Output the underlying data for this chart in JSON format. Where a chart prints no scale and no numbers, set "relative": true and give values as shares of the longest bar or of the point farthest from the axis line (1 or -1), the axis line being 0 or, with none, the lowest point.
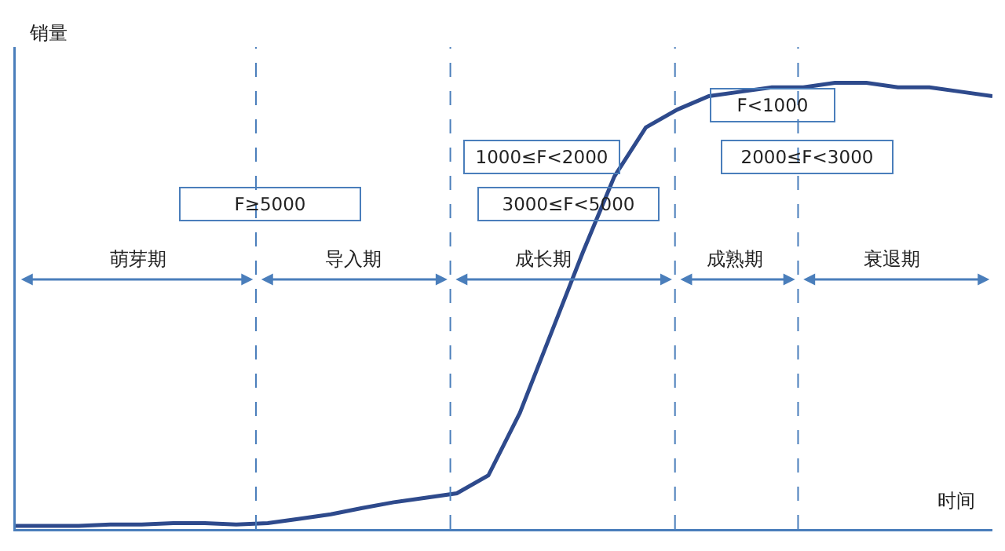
{
  "chart_data": {
    "type": "line",
    "relative": true,
    "xlabel": "时间",
    "ylabel": "销量",
    "color": "#2e4a8c",
    "categories": [
      null,
      null,
      null,
      null,
      null,
      null,
      null,
      null,
      null,
      null,
      null,
      null,
      null,
      null,
      null,
      null,
      null,
      null,
      null,
      null,
      null,
      null,
      null,
      null,
      null,
      null,
      null,
      null,
      null,
      null,
      null,
      null
    ],
    "marker": "none",
    "line_style": "solid",
    "values": [
      0.007,
      0.007,
      0.007,
      0.01,
      0.01,
      0.013,
      0.013,
      0.01,
      0.013,
      0.023,
      0.033,
      0.047,
      0.06,
      0.07,
      0.08,
      0.12,
      0.26,
      0.44,
      0.62,
      0.79,
      0.9,
      0.94,
      0.97,
      0.98,
      0.99,
      0.99,
      1,
      1,
      0.99,
      0.99,
      0.98,
      0.97
    ],
    "annotations": [
      "萌芽期",
      "导入期",
      "成长期",
      "成熟期",
      "衰退期",
      "F≥5000",
      "1000≤F<2000",
      "3000≤F<5000",
      "F<1000",
      "2000≤F<3000"
    ]
  }
}
